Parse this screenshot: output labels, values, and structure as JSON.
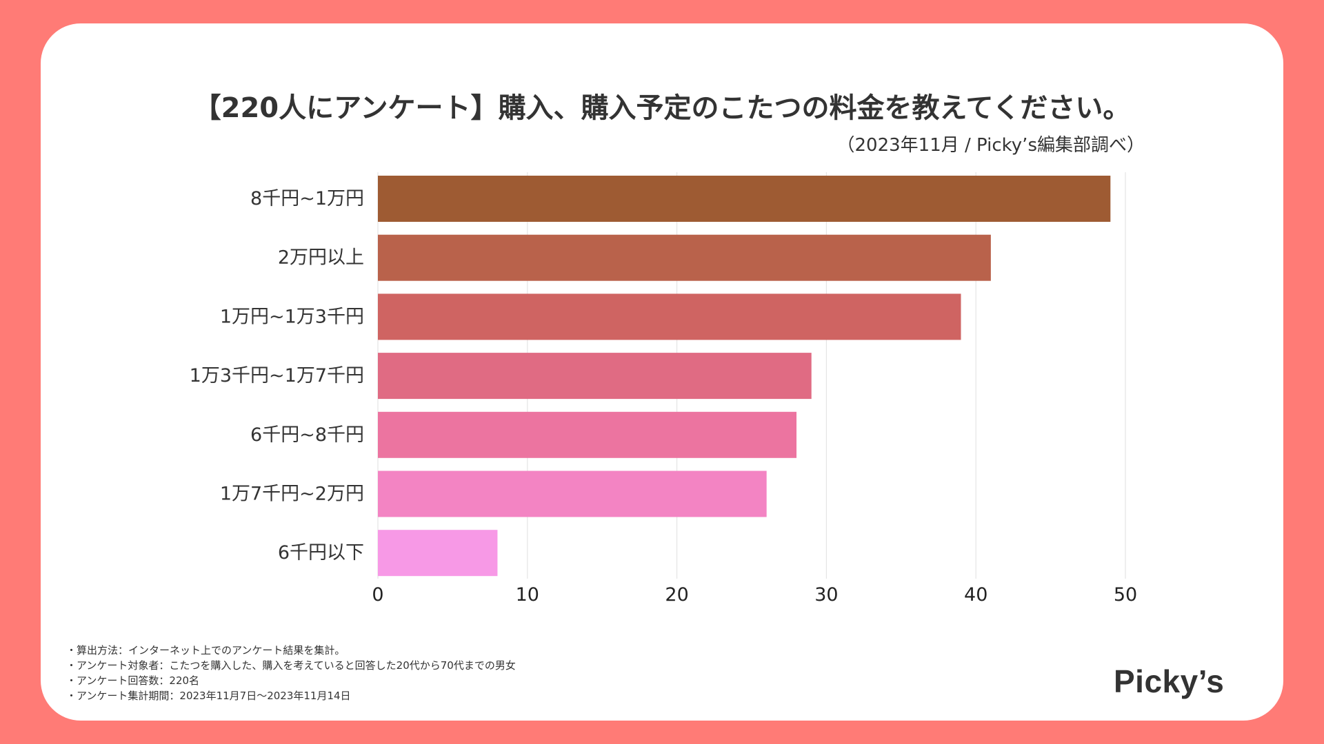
{
  "chart_data": {
    "type": "bar",
    "orientation": "horizontal",
    "title": "【220人にアンケート】購入、購入予定のこたつの料金を教えてください。",
    "subtitle": "（2023年11月 / Picky’s編集部調べ）",
    "categories": [
      "8千円~1万円",
      "2万円以上",
      "1万円~1万3千円",
      "1万3千円~1万7千円",
      "6千円~8千円",
      "1万7千円~2万円",
      "6千円以下"
    ],
    "values": [
      49,
      41,
      39,
      29,
      28,
      26,
      8
    ],
    "colors": [
      "#9e5b33",
      "#b9624b",
      "#cf6462",
      "#e06b83",
      "#ec74a0",
      "#f384c3",
      "#f799e6"
    ],
    "xlim": [
      0,
      50
    ],
    "xticks": [
      0,
      10,
      20,
      30,
      40,
      50
    ],
    "xlabel": "",
    "ylabel": "",
    "grid": true,
    "legend": "none"
  },
  "notes": [
    "・算出方法：インターネット上でのアンケート結果を集計。",
    "・アンケート対象者：こたつを購入した、購入を考えていると回答した20代から70代までの男女",
    "・アンケート回答数：220名",
    "・アンケート集計期間：2023年11月7日〜2023年11月14日"
  ],
  "logo": {
    "text": "Picky’s"
  },
  "colors": {
    "background": "#ff7b76",
    "card": "#ffffff",
    "text": "#333333",
    "grid": "#e4e4e4"
  }
}
